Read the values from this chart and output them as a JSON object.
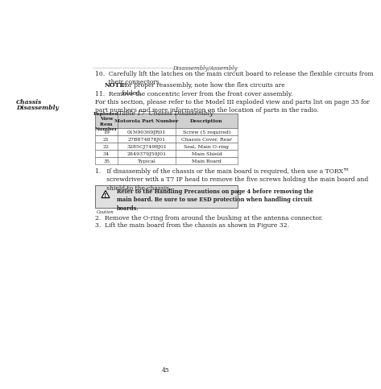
{
  "page_bg": "#ffffff",
  "header_text": "Disassembly/Assembly",
  "page_number": "45",
  "left_sidebar_labels": [
    "Chassis",
    "Disassembly"
  ],
  "step10_text": "10.  Carefully lift the latches on the main circuit board to release the flexible circuits from\n       their connectors.",
  "note_label": "NOTE:",
  "note_text": "For proper reassembly, note how the flex circuits are\n              folded.",
  "step11_text": "11.  Remove the concentric lever from the front cover assembly.",
  "chassis_intro": "For this section, please refer to the Model III exploded view and parts list on page 35 for\npart numbers and more information on the location of parts in the radio.",
  "table_title": "Table 17  Chassis Disassembly",
  "table_headers": [
    "Exploded\nView\nItem\nNumber",
    "Motorola Part Number",
    "Description"
  ],
  "table_rows": [
    [
      "19",
      "01N90369JR01",
      "Screw (5 required)"
    ],
    [
      "21",
      "27B874878J01",
      "Chassis Cover, Rear"
    ],
    [
      "22",
      "3285CJ7498J01",
      "Seal, Main O-ring"
    ],
    [
      "34",
      "2849379J59J01",
      "Main Shield"
    ],
    [
      "35",
      "Typical",
      "Main Board"
    ]
  ],
  "step1_text": "1.   If disassembly of the chassis or the main board is required, then use a TORX™\n      screwdriver with a T7 IP head to remove the five screws holding the main board and\n      shield to the chassis.",
  "caution_label": "Caution",
  "caution_bold_text": "Refer to the Handling Precautions on page 4 before removing the\nmain board. Be sure to use ESD protection when handling circuit\nboards.",
  "step2_text": "2.  Remove the O-ring from around the bushing at the antenna connector.",
  "step3_text": "3.  Lift the main board from the chassis as shown in Figure 32.",
  "table_header_bg": "#d0d0d0",
  "table_border_color": "#555555",
  "caution_bg": "#e0e0e0",
  "text_color": "#222222",
  "body_fontsize": 5.5,
  "small_fontsize": 5.0,
  "note_fontsize": 5.5
}
